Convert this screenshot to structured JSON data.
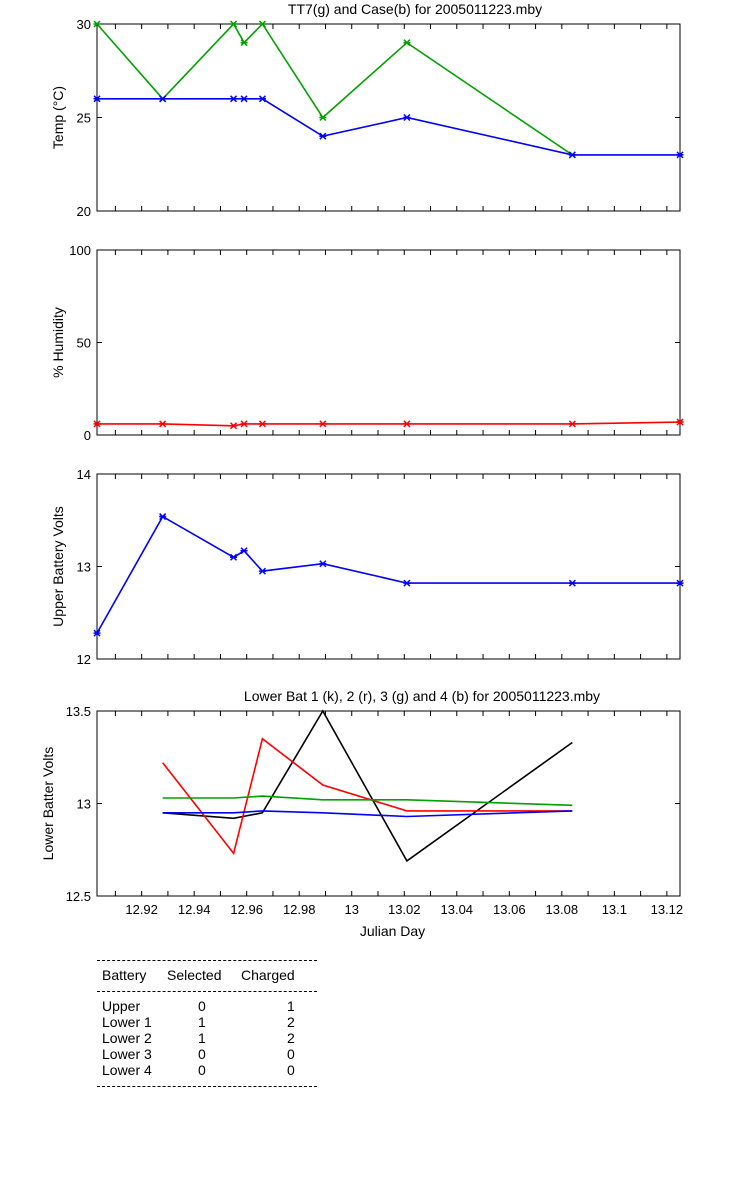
{
  "chart_data": [
    {
      "type": "line",
      "title": "TT7(g) and Case(b) for 2005011223.mby",
      "ylabel": "Temp  (°C)",
      "xlim": [
        12.903,
        13.125
      ],
      "ylim": [
        20,
        30
      ],
      "yticks": [
        20,
        25,
        30
      ],
      "markers": true,
      "series": [
        {
          "color": "#00a000",
          "x": [
            12.903,
            12.928,
            12.955,
            12.959,
            12.966,
            12.989,
            13.021,
            13.084
          ],
          "y": [
            30,
            26,
            30,
            29,
            30,
            25,
            29,
            23
          ]
        },
        {
          "color": "#0000ff",
          "x": [
            12.903,
            12.928,
            12.955,
            12.959,
            12.966,
            12.989,
            13.021,
            13.084,
            13.125
          ],
          "y": [
            26,
            26,
            26,
            26,
            26,
            24,
            25,
            23,
            23
          ]
        }
      ]
    },
    {
      "type": "line",
      "title": "",
      "ylabel": "% Humidity",
      "xlim": [
        12.903,
        13.125
      ],
      "ylim": [
        0,
        100
      ],
      "yticks": [
        0,
        50,
        100
      ],
      "markers": true,
      "series": [
        {
          "color": "#ff0000",
          "x": [
            12.903,
            12.928,
            12.955,
            12.959,
            12.966,
            12.989,
            13.021,
            13.084,
            13.125
          ],
          "y": [
            6,
            6,
            5,
            6,
            6,
            6,
            6,
            6,
            7
          ]
        }
      ]
    },
    {
      "type": "line",
      "title": "",
      "ylabel": "Upper Battery Volts",
      "xlim": [
        12.903,
        13.125
      ],
      "ylim": [
        12,
        14
      ],
      "yticks": [
        12,
        13,
        14
      ],
      "markers": true,
      "series": [
        {
          "color": "#0000ff",
          "x": [
            12.903,
            12.928,
            12.955,
            12.959,
            12.966,
            12.989,
            13.021,
            13.084,
            13.125
          ],
          "y": [
            12.28,
            13.54,
            13.1,
            13.17,
            12.95,
            13.03,
            12.82,
            12.82,
            12.82
          ]
        }
      ]
    },
    {
      "type": "line",
      "title": "Lower Bat 1 (k), 2 (r), 3 (g) and 4 (b) for 2005011223.mby",
      "ylabel": "Lower Batter Volts",
      "xlabel": "Julian Day",
      "xlim": [
        12.903,
        13.125
      ],
      "ylim": [
        12.5,
        13.5
      ],
      "yticks": [
        12.5,
        13,
        13.5
      ],
      "xticks": [
        12.92,
        12.94,
        12.96,
        12.98,
        13,
        13.02,
        13.04,
        13.06,
        13.08,
        13.1,
        13.12
      ],
      "markers": false,
      "series": [
        {
          "color": "#000000",
          "x": [
            12.928,
            12.955,
            12.966,
            12.989,
            13.021,
            13.084
          ],
          "y": [
            12.95,
            12.92,
            12.95,
            13.5,
            12.69,
            13.33
          ]
        },
        {
          "color": "#ff0000",
          "x": [
            12.928,
            12.955,
            12.966,
            12.989,
            13.021,
            13.084
          ],
          "y": [
            13.22,
            12.73,
            13.35,
            13.1,
            12.96,
            12.96
          ]
        },
        {
          "color": "#00a000",
          "x": [
            12.928,
            12.955,
            12.966,
            12.989,
            13.021,
            13.084
          ],
          "y": [
            13.03,
            13.03,
            13.04,
            13.02,
            13.02,
            12.99
          ]
        },
        {
          "color": "#0000ff",
          "x": [
            12.928,
            12.955,
            12.966,
            12.989,
            13.021,
            13.084
          ],
          "y": [
            12.95,
            12.95,
            12.96,
            12.95,
            12.93,
            12.96
          ]
        }
      ]
    }
  ],
  "battery_table": {
    "headers": [
      "Battery",
      "Selected",
      "Charged"
    ],
    "rows": [
      [
        "Upper",
        "0",
        "1"
      ],
      [
        "Lower 1",
        "1",
        "2"
      ],
      [
        "Lower 2",
        "1",
        "2"
      ],
      [
        "Lower 3",
        "0",
        "0"
      ],
      [
        "Lower 4",
        "0",
        "0"
      ]
    ]
  }
}
